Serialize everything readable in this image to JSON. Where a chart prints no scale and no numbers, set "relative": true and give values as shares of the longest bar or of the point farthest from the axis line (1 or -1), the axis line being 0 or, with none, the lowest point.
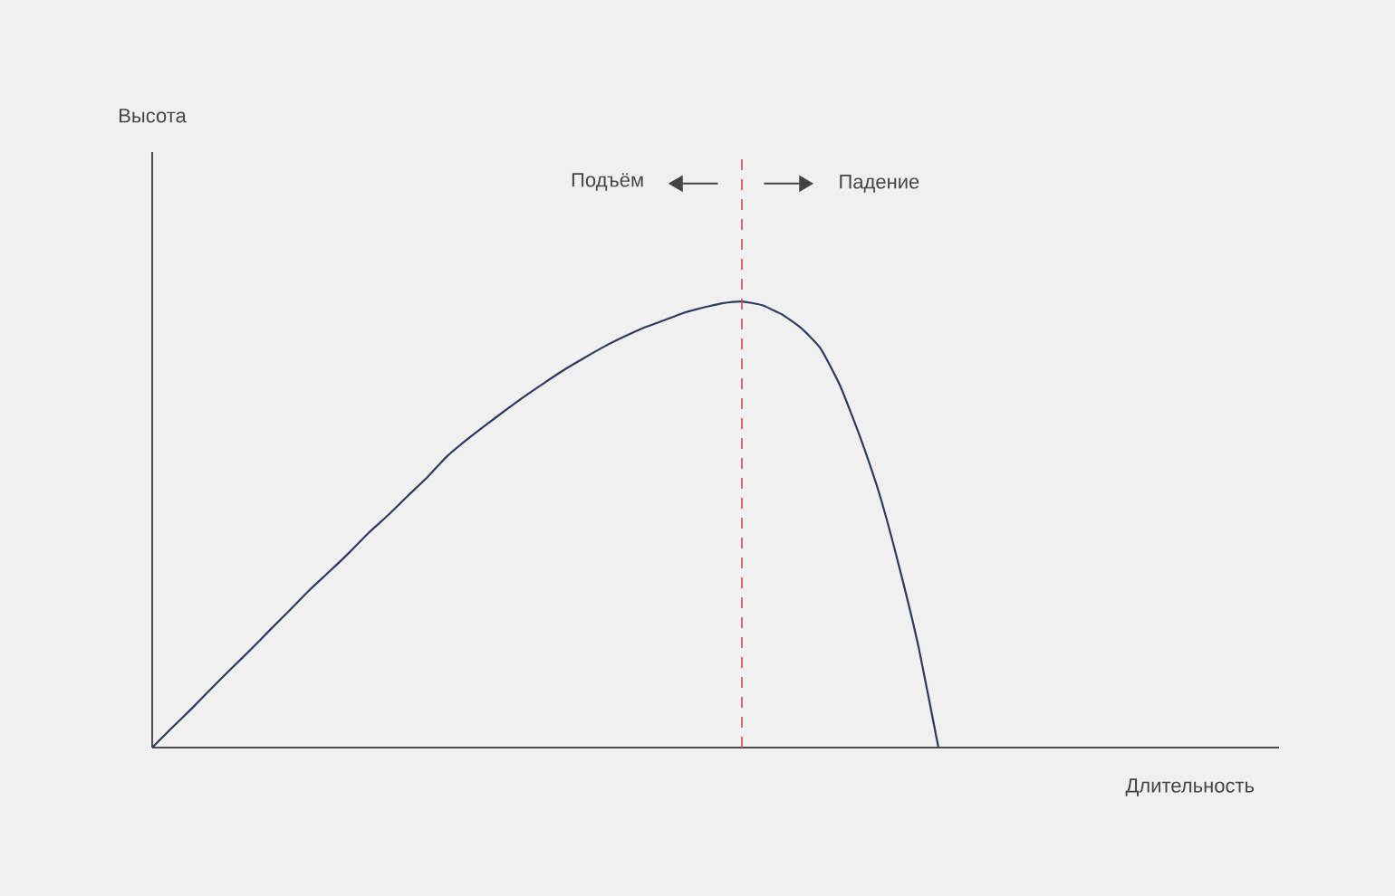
{
  "chart_data": {
    "type": "line",
    "relative": true,
    "categories": [
      null,
      null,
      null,
      null,
      null,
      null,
      null,
      null,
      null,
      null,
      null,
      null,
      null,
      null,
      null,
      null,
      null,
      null,
      null,
      null,
      null,
      null,
      null,
      null,
      null,
      null,
      null,
      null,
      null,
      null,
      null,
      null,
      null,
      null,
      null,
      null,
      null,
      null,
      null,
      null,
      null
    ],
    "series": [
      {
        "color": "#2d3a5e",
        "values": [
          0,
          0.044,
          0.087,
          0.132,
          0.176,
          0.219,
          0.264,
          0.308,
          0.353,
          0.394,
          0.436,
          0.481,
          0.521,
          0.564,
          0.606,
          0.653,
          0.69,
          0.724,
          0.757,
          0.789,
          0.819,
          0.848,
          0.874,
          0.899,
          0.921,
          0.941,
          0.957,
          0.974,
          0.986,
          0.996,
          1,
          0.992,
          0.972,
          0.941,
          0.895,
          0.811,
          0.698,
          0.568,
          0.406,
          0.223,
          0
        ]
      }
    ],
    "annotations": [
      "Высота",
      "Длительность",
      "Подъём",
      "Падение"
    ],
    "marker": "none",
    "line_style": "solid"
  }
}
